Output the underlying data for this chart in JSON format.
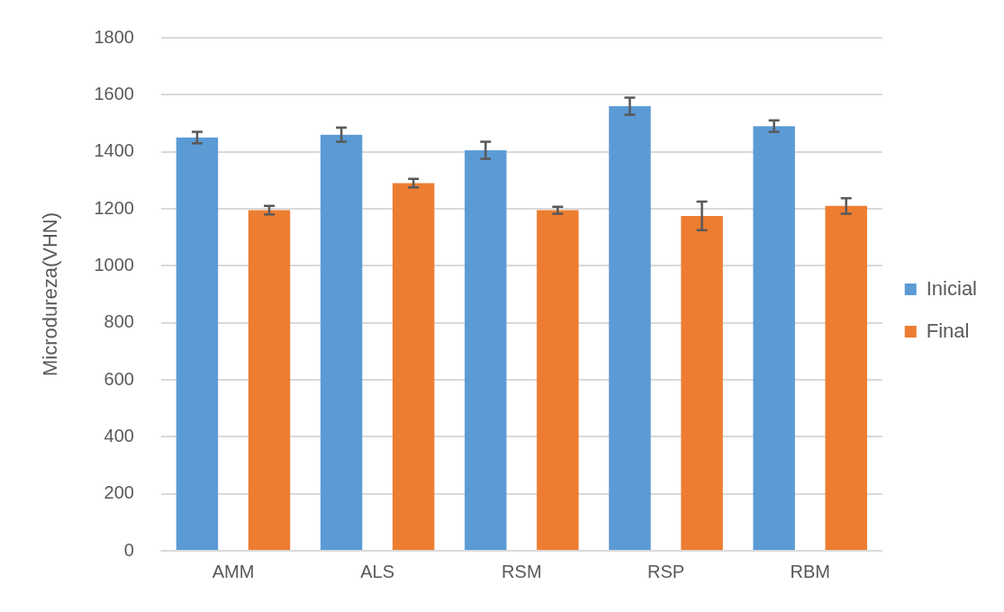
{
  "chart_data": {
    "type": "bar",
    "ylabel": "Microdureza(VHN)",
    "categories": [
      "AMM",
      "ALS",
      "RSM",
      "RSP",
      "RBM"
    ],
    "series": [
      {
        "name": "Inicial",
        "color": "#5b9bd5",
        "values": [
          1450,
          1460,
          1405,
          1560,
          1490
        ],
        "errors": [
          20,
          25,
          30,
          30,
          20
        ]
      },
      {
        "name": "Final",
        "color": "#ed7d31",
        "values": [
          1195,
          1290,
          1195,
          1175,
          1210
        ],
        "errors": [
          15,
          15,
          12,
          50,
          27
        ]
      }
    ],
    "ylim": [
      0,
      1800
    ],
    "yticks": [
      0,
      200,
      400,
      600,
      800,
      1000,
      1200,
      1400,
      1600,
      1800
    ],
    "grid": "y",
    "legend": "right"
  }
}
